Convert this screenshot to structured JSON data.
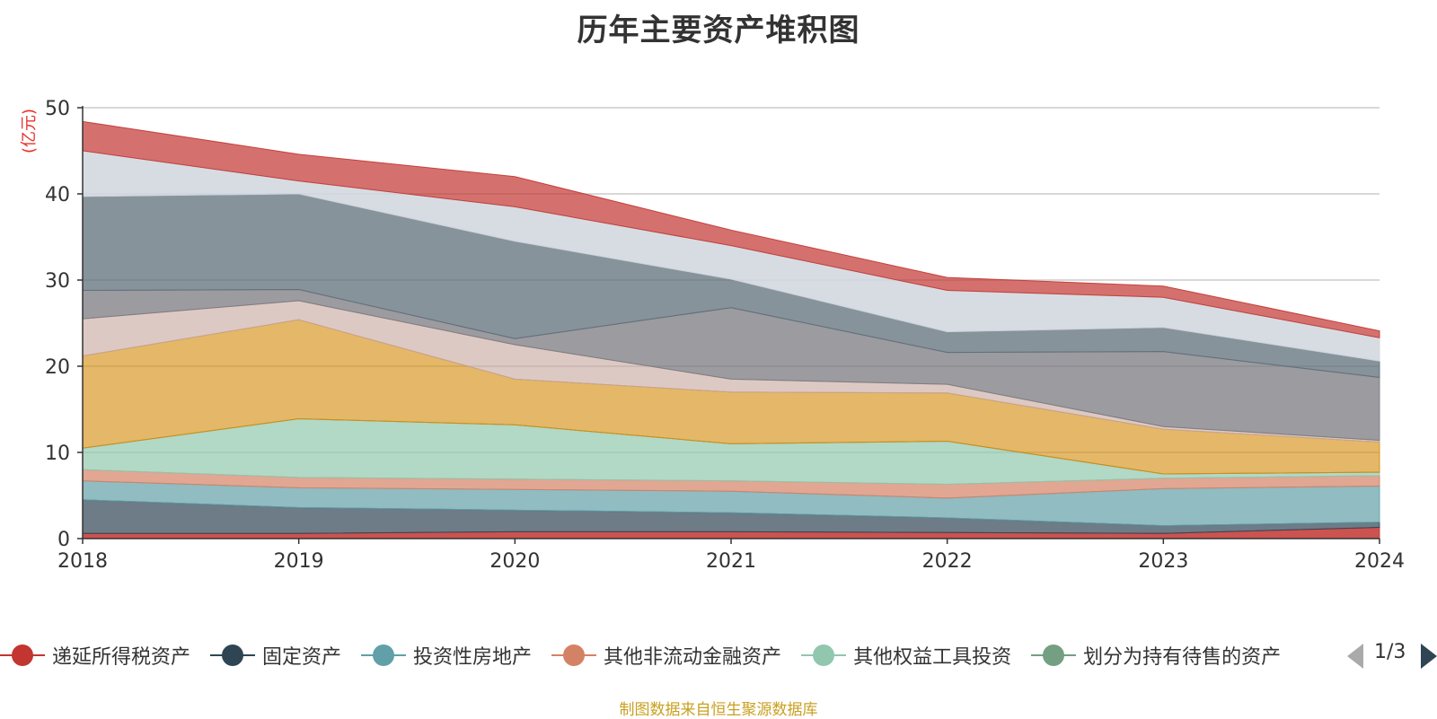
{
  "title": "历年主要资产堆积图",
  "unit_label": "(亿元)",
  "source_note": "制图数据来自恒生聚源数据库",
  "legend_page": "1/3",
  "colors": {
    "unit": "#e8322c",
    "source_note": "#c9a021",
    "axis": "#333333",
    "grid": "#cccccc"
  },
  "legend": [
    {
      "name": "递延所得税资产",
      "color": "#c23531"
    },
    {
      "name": "固定资产",
      "color": "#2f4554"
    },
    {
      "name": "投资性房地产",
      "color": "#61a0a8"
    },
    {
      "name": "其他非流动金融资产",
      "color": "#d48265"
    },
    {
      "name": "其他权益工具投资",
      "color": "#91c7ae"
    },
    {
      "name": "划分为持有待售的资产",
      "color": "#749f83"
    }
  ],
  "chart_data": {
    "type": "area",
    "stacked": true,
    "x": [
      "2018",
      "2019",
      "2020",
      "2021",
      "2022",
      "2023",
      "2024"
    ],
    "ylim": [
      0,
      50
    ],
    "yticks": [
      0,
      10,
      20,
      30,
      40,
      50
    ],
    "grid": true,
    "legend_position": "bottom",
    "bands": [
      {
        "color": "#c23531",
        "opacity": 0.85,
        "values": [
          0.6,
          0.6,
          0.8,
          0.8,
          0.7,
          0.6,
          1.3
        ]
      },
      {
        "color": "#2f4554",
        "opacity": 0.7,
        "values": [
          3.9,
          3.0,
          2.5,
          2.2,
          1.7,
          0.9,
          0.6
        ]
      },
      {
        "color": "#61a0a8",
        "opacity": 0.7,
        "values": [
          2.2,
          2.3,
          2.4,
          2.5,
          2.3,
          4.3,
          4.2
        ]
      },
      {
        "color": "#d48265",
        "opacity": 0.7,
        "values": [
          1.3,
          1.2,
          1.2,
          1.2,
          1.6,
          1.2,
          1.2
        ]
      },
      {
        "color": "#91c7ae",
        "opacity": 0.7,
        "values": [
          2.5,
          6.8,
          6.3,
          4.3,
          5.0,
          0.5,
          0.4
        ]
      },
      {
        "color": "#749f83",
        "opacity": 0.7,
        "values": [
          0.0,
          0.0,
          0.0,
          0.0,
          0.0,
          0.0,
          0.0
        ]
      },
      {
        "color": "#d48d0c",
        "opacity": 0.62,
        "values": [
          10.7,
          11.5,
          5.3,
          6.0,
          5.6,
          5.2,
          3.5
        ]
      },
      {
        "color": "#c7a59c",
        "opacity": 0.6,
        "values": [
          4.3,
          2.2,
          4.0,
          1.5,
          1.0,
          0.3,
          0.2
        ]
      },
      {
        "color": "#7a7a80",
        "opacity": 0.75,
        "values": [
          3.3,
          1.3,
          0.7,
          8.3,
          3.7,
          8.7,
          7.3
        ]
      },
      {
        "color": "#5f6f7a",
        "opacity": 0.75,
        "values": [
          10.9,
          11.1,
          11.3,
          3.3,
          2.4,
          2.8,
          1.9
        ]
      },
      {
        "color": "#d0d6de",
        "opacity": 0.85,
        "values": [
          5.3,
          1.5,
          4.0,
          3.9,
          4.8,
          3.5,
          2.7
        ]
      },
      {
        "color": "#c23531",
        "opacity": 0.7,
        "values": [
          3.4,
          3.1,
          3.5,
          1.8,
          1.5,
          1.3,
          0.8
        ]
      }
    ]
  }
}
